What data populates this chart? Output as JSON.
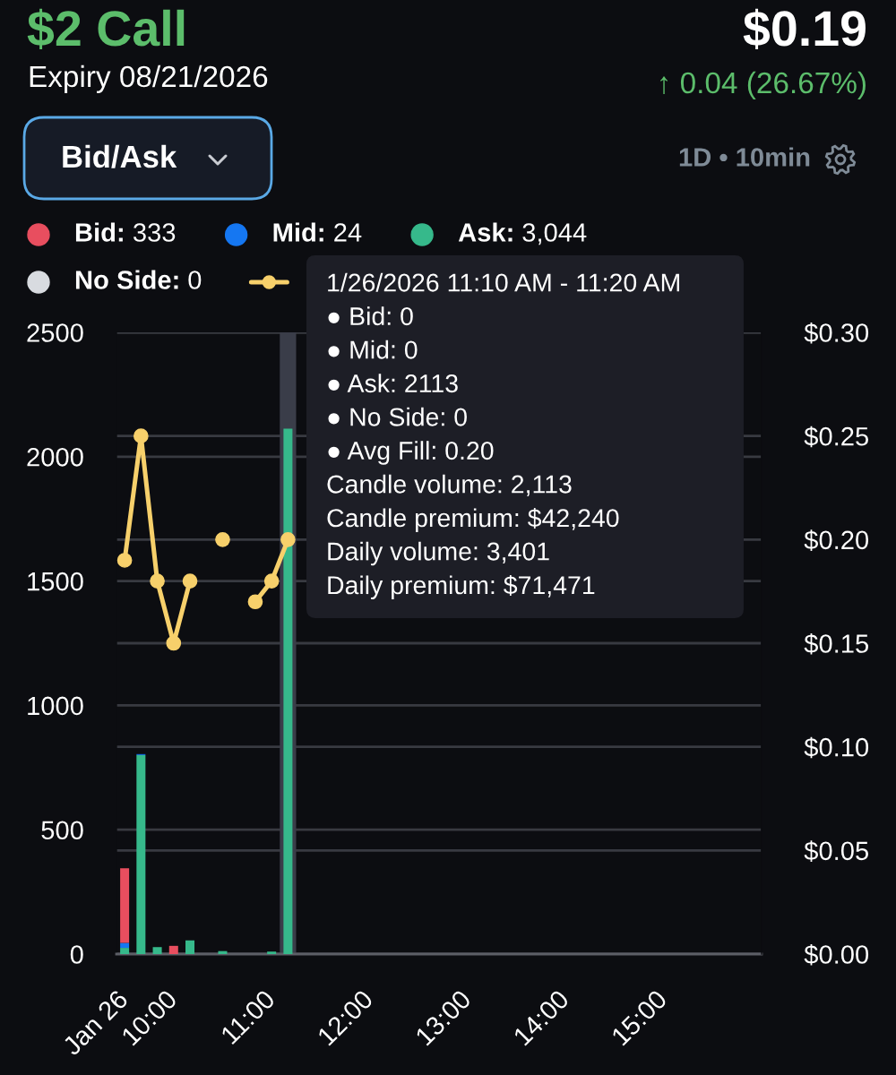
{
  "chart_data": {
    "type": "bar",
    "title": "$2 Call",
    "subtitle": "Expiry 08/21/2026",
    "annotations": [
      "$0.19",
      "↑ 0.04 (26.67%)",
      "Bid/Ask",
      "1D • 10min",
      "1/26/2026 11:10 AM - 11:20 AM",
      "● Bid: 0",
      "● Mid: 0",
      "● Ask: 2113",
      "● No Side: 0",
      "● Avg Fill: 0.20",
      "Candle volume: 2,113",
      "Candle premium: $42,240",
      "Daily volume: 3,401",
      "Daily premium: $71,471"
    ],
    "x": [
      9.5,
      9.6667,
      9.8333,
      10,
      10.1667,
      10.3333,
      10.5,
      10.6667,
      10.8333,
      11,
      11.1667
    ],
    "stacked": true,
    "series": [
      {
        "name": "No Side: 0",
        "color": "#d8dbe0",
        "values": [
          null,
          null,
          null,
          null,
          null,
          null,
          null,
          null,
          null,
          null,
          null
        ]
      },
      {
        "name": "Ask: 3,044",
        "color": "#36b98b",
        "values": [
          25,
          800,
          28,
          null,
          55,
          null,
          12,
          null,
          null,
          10,
          2113
        ]
      },
      {
        "name": "Mid: 24",
        "color": "#1577f2",
        "values": [
          20,
          4,
          null,
          null,
          null,
          null,
          null,
          null,
          null,
          null,
          null
        ]
      },
      {
        "name": "Bid: 333",
        "color": "#e84e5f",
        "values": [
          300,
          null,
          null,
          33,
          null,
          null,
          null,
          null,
          null,
          null,
          null
        ]
      },
      {
        "type": "line",
        "axis": "y2",
        "color": "#f7d06b",
        "values": [
          0.19,
          0.25,
          0.18,
          0.15,
          0.18,
          null,
          0.2,
          null,
          0.17,
          0.18,
          0.2
        ]
      }
    ],
    "xlim": [
      9.4167,
      16
    ],
    "xticks": [
      {
        "value": 9.5,
        "label": "Jan 26"
      },
      {
        "value": 10,
        "label": "10:00"
      },
      {
        "value": 11,
        "label": "11:00"
      },
      {
        "value": 12,
        "label": "12:00"
      },
      {
        "value": 13,
        "label": "13:00"
      },
      {
        "value": 14,
        "label": "14:00"
      },
      {
        "value": 15,
        "label": "15:00"
      }
    ],
    "ylim": [
      0,
      2500
    ],
    "yticks": [
      0,
      500,
      1000,
      1500,
      2000,
      2500
    ],
    "y2lim": [
      0,
      0.3
    ],
    "y2ticks": [
      {
        "value": 0,
        "label": "$0.00"
      },
      {
        "value": 0.05,
        "label": "$0.05"
      },
      {
        "value": 0.1,
        "label": "$0.10"
      },
      {
        "value": 0.15,
        "label": "$0.15"
      },
      {
        "value": 0.2,
        "label": "$0.20"
      },
      {
        "value": 0.25,
        "label": "$0.25"
      },
      {
        "value": 0.3,
        "label": "$0.30"
      }
    ],
    "bands": [
      {
        "axis": "x",
        "from": 11.0833,
        "to": 11.25,
        "color": "#3a3d49"
      }
    ],
    "grid": "y",
    "legend": "top",
    "marker": "circle",
    "line_style": "solid"
  }
}
